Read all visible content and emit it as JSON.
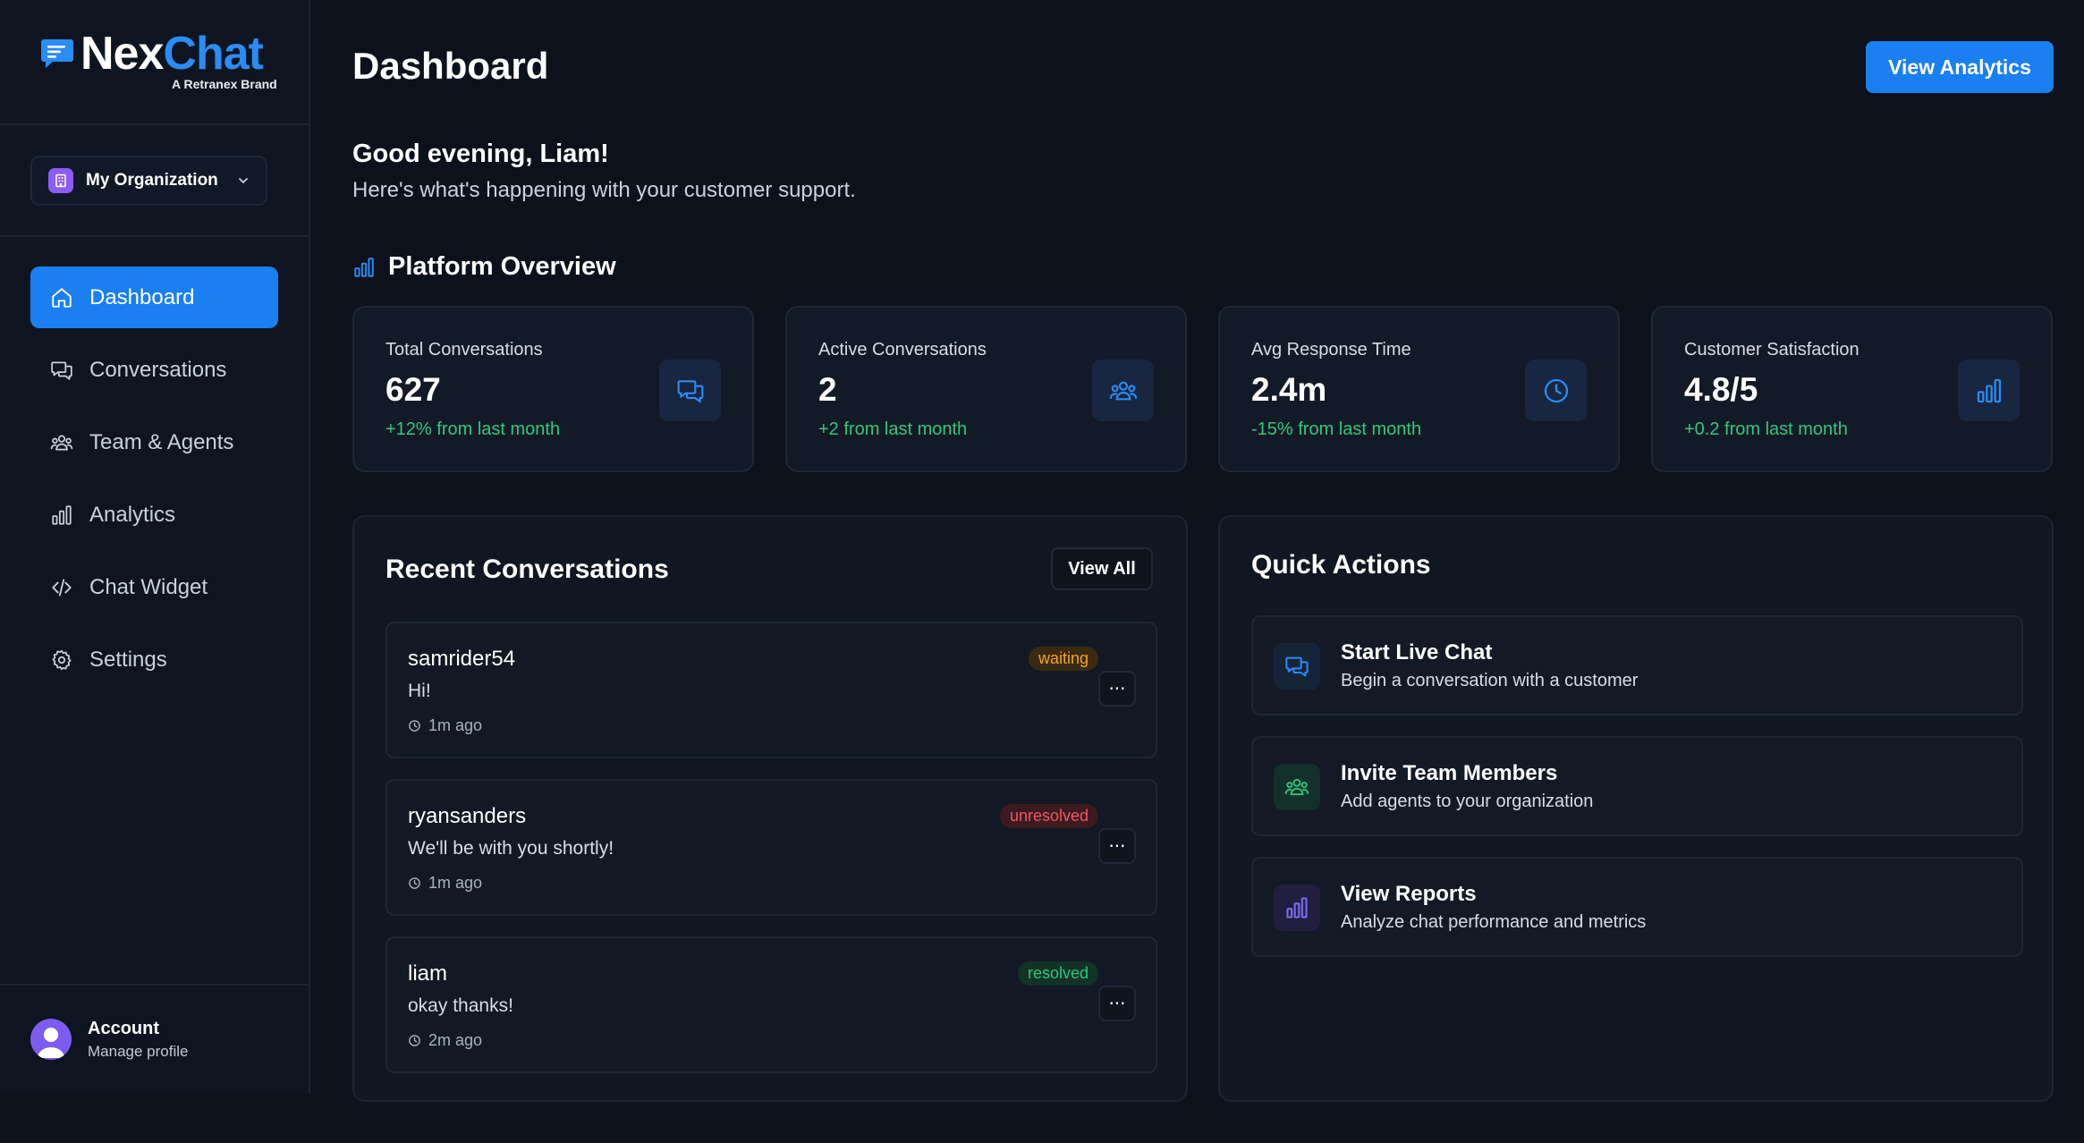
{
  "brand": {
    "name_part1": "Nex",
    "name_part2": "Chat",
    "tagline": "A Retranex Brand",
    "accent": "#1a7ff0"
  },
  "org": {
    "label": "My Organization"
  },
  "nav": [
    {
      "label": "Dashboard",
      "icon": "home-icon",
      "active": true
    },
    {
      "label": "Conversations",
      "icon": "chat-icon"
    },
    {
      "label": "Team & Agents",
      "icon": "team-icon"
    },
    {
      "label": "Analytics",
      "icon": "bar-chart-icon"
    },
    {
      "label": "Chat Widget",
      "icon": "code-icon"
    },
    {
      "label": "Settings",
      "icon": "gear-icon"
    }
  ],
  "account": {
    "title": "Account",
    "subtitle": "Manage profile"
  },
  "header": {
    "title": "Dashboard",
    "analytics_button": "View Analytics",
    "greeting": "Good evening, Liam!",
    "subtitle": "Here's what's happening with your customer support."
  },
  "overview": {
    "title": "Platform Overview",
    "stats": [
      {
        "label": "Total Conversations",
        "value": "627",
        "change": "+12% from last month",
        "icon": "chat-icon"
      },
      {
        "label": "Active Conversations",
        "value": "2",
        "change": "+2 from last month",
        "icon": "team-icon"
      },
      {
        "label": "Avg Response Time",
        "value": "2.4m",
        "change": "-15% from last month",
        "icon": "clock-icon"
      },
      {
        "label": "Customer Satisfaction",
        "value": "4.8/5",
        "change": "+0.2 from last month",
        "icon": "bar-chart-icon"
      }
    ]
  },
  "recent": {
    "title": "Recent Conversations",
    "view_all": "View All",
    "more_label": "···",
    "items": [
      {
        "name": "samrider54",
        "message": "Hi!",
        "time": "1m ago",
        "status": "waiting"
      },
      {
        "name": "ryansanders",
        "message": "We'll be with you shortly!",
        "time": "1m ago",
        "status": "unresolved"
      },
      {
        "name": "liam",
        "message": "okay thanks!",
        "time": "2m ago",
        "status": "resolved"
      }
    ]
  },
  "quick": {
    "title": "Quick Actions",
    "items": [
      {
        "title": "Start Live Chat",
        "desc": "Begin a conversation with a customer",
        "icon": "chat-icon"
      },
      {
        "title": "Invite Team Members",
        "desc": "Add agents to your organization",
        "icon": "team-icon"
      },
      {
        "title": "View Reports",
        "desc": "Analyze chat performance and metrics",
        "icon": "bar-chart-icon"
      }
    ]
  }
}
